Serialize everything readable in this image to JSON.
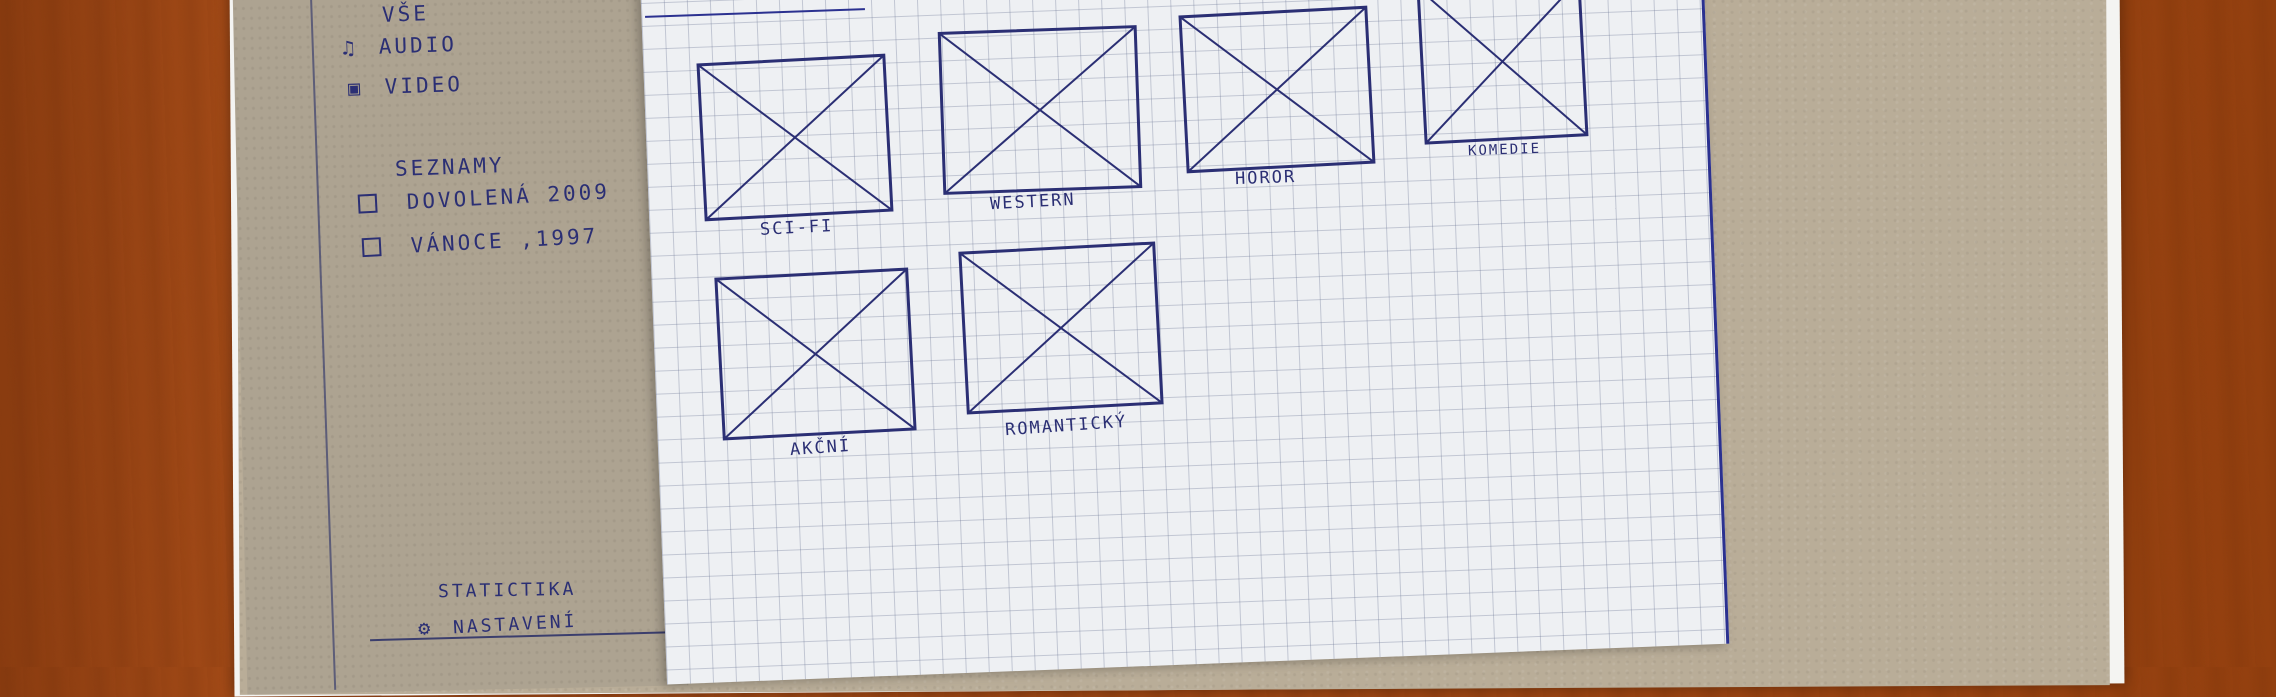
{
  "sidebar": {
    "nav": [
      {
        "label": "VŠE",
        "icon": ""
      },
      {
        "label": "AUDIO",
        "icon": "♫"
      },
      {
        "label": "VIDEO",
        "icon": "▣"
      }
    ],
    "lists_heading": "SEZNAMY",
    "lists": [
      {
        "label": "DOVOLENÁ 2009"
      },
      {
        "label": "VÁNOCE ,1997"
      }
    ],
    "footer": {
      "stats_label": "STATICTIKA",
      "settings_icon": "⚙",
      "settings_label": "NASTAVENÍ"
    }
  },
  "genres": [
    {
      "label": "SCI-FI"
    },
    {
      "label": "WESTERN"
    },
    {
      "label": "HOROR"
    },
    {
      "label": "KOMEDIE"
    },
    {
      "label": "AKČNÍ"
    },
    {
      "label": "ROMANTICKÝ"
    }
  ],
  "colors": {
    "ink": "#2b2f74",
    "table": "#9a4414",
    "cardboard": "#b9ad98",
    "paper": "#eef0f3"
  },
  "icons": [
    "music-note-icon",
    "video-camera-icon",
    "checkbox-icon",
    "gear-icon"
  ]
}
